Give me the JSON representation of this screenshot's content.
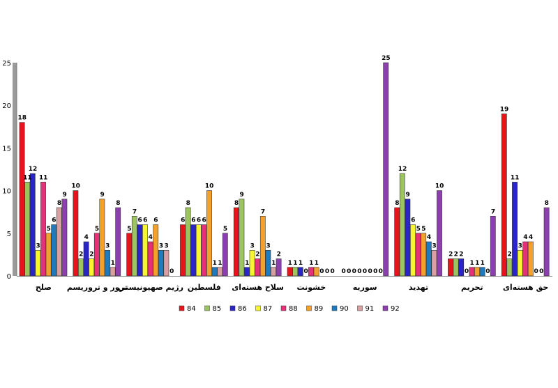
{
  "chart_data": {
    "type": "bar",
    "title": "",
    "xlabel": "",
    "ylabel": "",
    "ylim": [
      0,
      25
    ],
    "yticks": [
      0,
      5,
      10,
      15,
      20,
      25
    ],
    "grid": false,
    "legend_position": "bottom",
    "categories": [
      "صلح",
      "ترور و تروریسم",
      "رژیم صهیونیستی",
      "فلسطین",
      "سلاح هسته‌ای",
      "خشونت",
      "سوریه",
      "تهدید",
      "تحریم",
      "حق هسته‌ای"
    ],
    "series": [
      {
        "name": "84",
        "color": "#e8141b",
        "values": [
          18,
          10,
          5,
          6,
          8,
          1,
          0,
          8,
          2,
          19
        ]
      },
      {
        "name": "85",
        "color": "#9dc55f",
        "values": [
          11,
          2,
          7,
          8,
          9,
          1,
          0,
          12,
          2,
          2
        ]
      },
      {
        "name": "86",
        "color": "#2a25c9",
        "values": [
          12,
          4,
          6,
          6,
          1,
          1,
          0,
          9,
          2,
          11
        ]
      },
      {
        "name": "87",
        "color": "#f7f430",
        "values": [
          3,
          2,
          6,
          6,
          3,
          0,
          0,
          6,
          0,
          3
        ]
      },
      {
        "name": "88",
        "color": "#e5307a",
        "values": [
          11,
          5,
          4,
          6,
          2,
          1,
          0,
          5,
          1,
          4
        ]
      },
      {
        "name": "89",
        "color": "#f4a02c",
        "values": [
          5,
          9,
          6,
          10,
          7,
          1,
          0,
          5,
          1,
          4
        ]
      },
      {
        "name": "90",
        "color": "#1f7bbf",
        "values": [
          6,
          3,
          3,
          1,
          3,
          0,
          0,
          4,
          1,
          0
        ]
      },
      {
        "name": "91",
        "color": "#d9a0a2",
        "values": [
          8,
          1,
          3,
          1,
          1,
          0,
          0,
          3,
          0,
          0
        ]
      },
      {
        "name": "92",
        "color": "#8e3fae",
        "values": [
          9,
          8,
          0,
          5,
          2,
          0,
          25,
          10,
          7,
          8
        ]
      }
    ]
  }
}
